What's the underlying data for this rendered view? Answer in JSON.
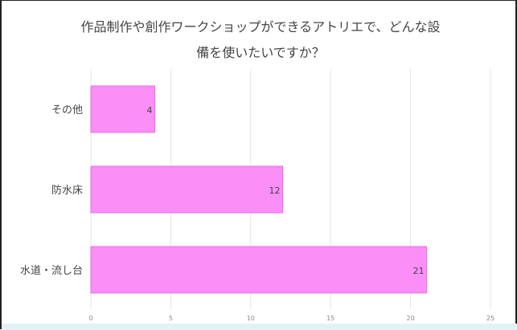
{
  "chart_data": {
    "type": "bar",
    "orientation": "horizontal",
    "title": "作品制作や創作ワークショップができるアトリエで、どんな設備を使いたいですか？",
    "title_lines": [
      "作品制作や創作ワークショップができるアトリエで、どんな設",
      "備を使いたいですか？"
    ],
    "categories": [
      "その他",
      "防水床",
      "水道・流し台"
    ],
    "values": [
      4,
      12,
      21
    ],
    "data_labels": [
      "4",
      "12",
      "21"
    ],
    "xlim": [
      0,
      25
    ],
    "x_ticks": [
      0,
      5,
      10,
      15,
      20,
      25
    ],
    "x_tick_labels": [
      "0",
      "5",
      "10",
      "15",
      "20",
      "25"
    ],
    "grid": true,
    "legend": "none",
    "colors": {
      "bar_fill": "#fb8ef7",
      "bar_stroke": "#e85ee0",
      "grid": "#e4e4e4",
      "text": "#444444",
      "tick_text": "#888888"
    }
  }
}
